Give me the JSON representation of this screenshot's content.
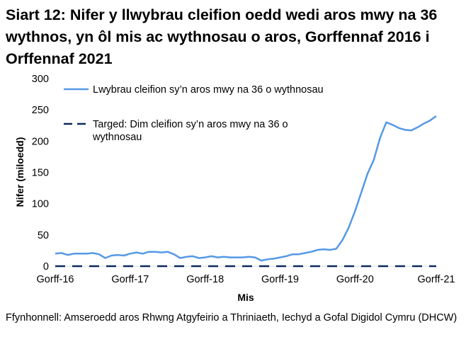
{
  "title": "Siart 12: Nifer y llwybrau cleifion oedd wedi aros mwy na 36 wythnos, yn ôl mis ac wythnosau o aros, Gorffennaf 2016 i Orffennaf 2021",
  "source": "Ffynhonnell: Amseroedd aros Rhwng Atgyfeirio a Thriniaeth, Iechyd a Gofal Digidol Cymru (DHCW)",
  "colors": {
    "series_line": "#5599e6",
    "target_line": "#0d2a5e",
    "axis": "#d9d9d9"
  },
  "chart_data": {
    "type": "line",
    "xlabel": "Mis",
    "ylabel": "Nifer (miloedd)",
    "ylim": [
      0,
      300
    ],
    "yticks": [
      "0",
      "50",
      "100",
      "150",
      "200",
      "250",
      "300"
    ],
    "grid": false,
    "legend_position": "top-right",
    "xticks": [
      "Gorff-16",
      "Gorff-17",
      "Gorff-18",
      "Gorff-19",
      "Gorff-20",
      "Gorff-21"
    ],
    "series": [
      {
        "name": "Lwybrau cleifion sy’n aros mwy na 36 o wythnosau",
        "style": "solid",
        "values": [
          20,
          21,
          18,
          20,
          20,
          20,
          21,
          19,
          13,
          17,
          18,
          17,
          20,
          22,
          20,
          23,
          23,
          22,
          23,
          19,
          13,
          15,
          16,
          13,
          14,
          16,
          14,
          15,
          14,
          14,
          14,
          15,
          14,
          9,
          11,
          12,
          14,
          16,
          19,
          19,
          21,
          23,
          26,
          27,
          26,
          28,
          42,
          62,
          88,
          118,
          148,
          170,
          205,
          230,
          226,
          221,
          218,
          217,
          222,
          228,
          233,
          240
        ]
      },
      {
        "name": "Targed: Dim cleifion sy’n aros mwy na 36 o wythnosau",
        "style": "dashed",
        "values": [
          0,
          0
        ]
      }
    ]
  }
}
